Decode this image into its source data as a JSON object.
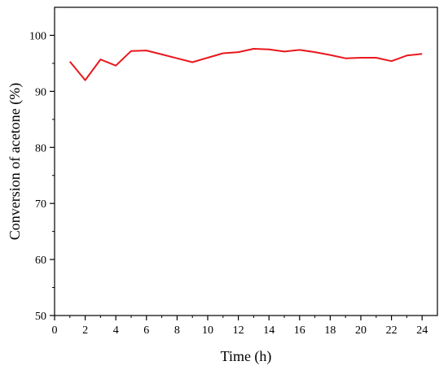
{
  "chart_data": {
    "type": "line",
    "title": "",
    "xlabel": "Time (h)",
    "ylabel": "Conversion of acetone (%)",
    "xlim": [
      0,
      25
    ],
    "ylim": [
      50,
      105
    ],
    "x_ticks": [
      0,
      2,
      4,
      6,
      8,
      10,
      12,
      14,
      16,
      18,
      20,
      22,
      24
    ],
    "y_ticks": [
      50,
      60,
      70,
      80,
      90,
      100
    ],
    "grid": false,
    "legend": "none",
    "series": [
      {
        "color": "#e8171d",
        "x": [
          1,
          2,
          3,
          4,
          5,
          6,
          7,
          8,
          9,
          10,
          11,
          12,
          13,
          14,
          15,
          16,
          17,
          18,
          19,
          20,
          21,
          22,
          23,
          24
        ],
        "y": [
          95.3,
          92.0,
          95.7,
          94.6,
          97.2,
          97.3,
          96.6,
          95.9,
          95.2,
          96.0,
          96.8,
          97.0,
          97.6,
          97.5,
          97.1,
          97.4,
          97.0,
          96.5,
          95.9,
          96.0,
          96.0,
          95.4,
          96.4,
          96.7
        ]
      }
    ]
  }
}
